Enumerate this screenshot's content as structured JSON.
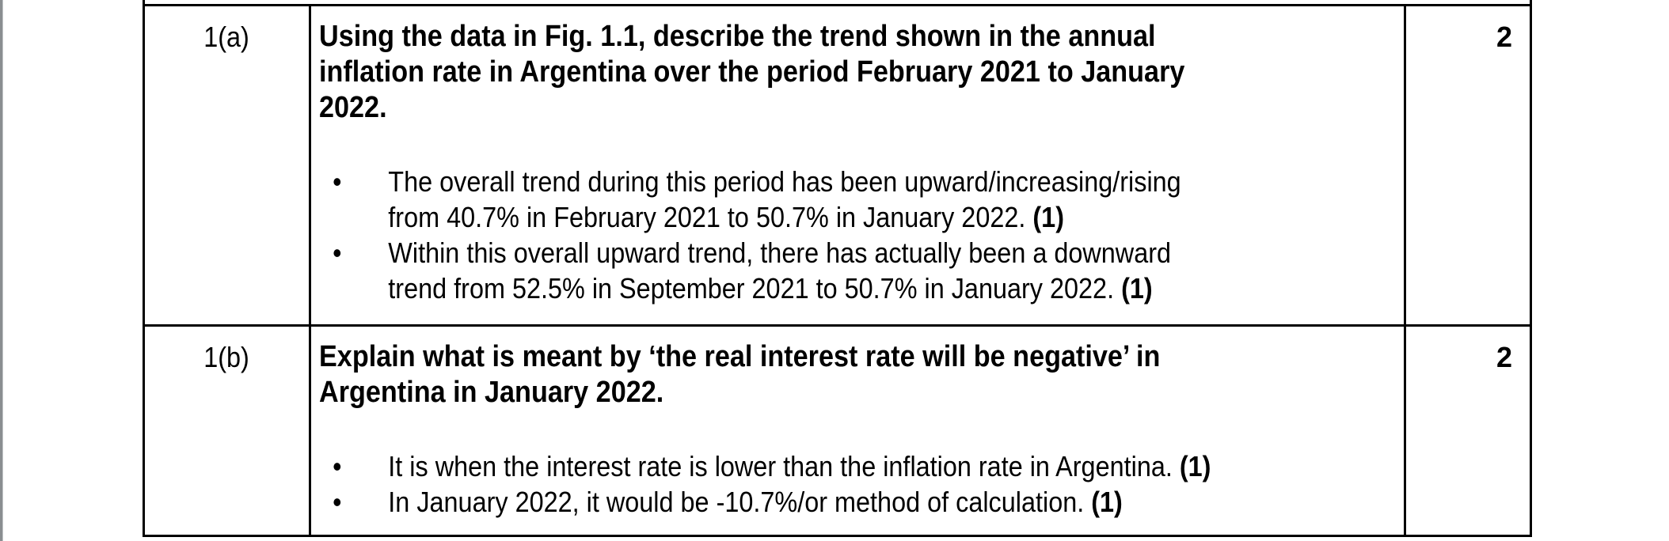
{
  "page": {
    "background_color": "#ffffff",
    "rule_color": "#000000",
    "edge_strip_color": "#8a8e91",
    "bullet_glyph": "•"
  },
  "table": {
    "rows": [
      {
        "number": "1(a)",
        "marks": "2",
        "question": "Using the data in Fig. 1.1, describe the trend shown in the annual\ninflation rate in Argentina over the period February 2021 to January\n2022.",
        "bullets": [
          {
            "text": "The overall trend during this period has been upward/increasing/rising\nfrom 40.7% in February 2021 to 50.7% in January 2022.",
            "mark": "(1)"
          },
          {
            "text": "Within this overall upward trend, there has actually been a downward\ntrend from 52.5% in September 2021 to 50.7% in January 2022.",
            "mark": "(1)"
          }
        ]
      },
      {
        "number": "1(b)",
        "marks": "2",
        "question": "Explain what is meant by ‘the real interest rate will be negative’ in\nArgentina in January 2022.",
        "bullets": [
          {
            "text": "It is when the interest rate is lower than the inflation rate in Argentina.",
            "mark": "(1)"
          },
          {
            "text": "In January 2022, it would be -10.7%/or method of calculation.",
            "mark": "(1)"
          }
        ]
      }
    ]
  }
}
